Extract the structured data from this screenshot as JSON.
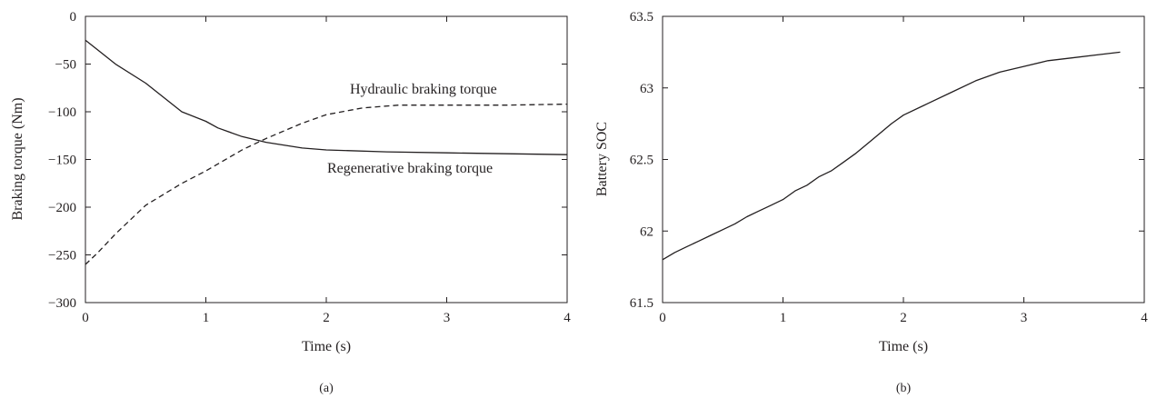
{
  "chart_data": [
    {
      "type": "line",
      "panel_label": "(a)",
      "xlabel": "Time (s)",
      "ylabel": "Braking torque (Nm)",
      "xlim": [
        0,
        4
      ],
      "ylim": [
        -300,
        0
      ],
      "xticks": [
        0,
        1,
        2,
        3,
        4
      ],
      "yticks": [
        0,
        -50,
        -100,
        -150,
        -200,
        -250,
        -300
      ],
      "xtick_labels": [
        "0",
        "1",
        "2",
        "3",
        "4"
      ],
      "ytick_labels": [
        "0",
        "−50",
        "−100",
        "−150",
        "−200",
        "−250",
        "−300"
      ],
      "grid": false,
      "line_color": "#231f20",
      "series": [
        {
          "name": "Regenerative braking torque",
          "style": "solid",
          "x": [
            0,
            0.1,
            0.25,
            0.5,
            0.8,
            1.0,
            1.1,
            1.3,
            1.5,
            1.8,
            2.0,
            2.5,
            3.0,
            3.5,
            4.0
          ],
          "y": [
            -25,
            -35,
            -50,
            -70,
            -100,
            -110,
            -117,
            -126,
            -132,
            -138,
            -140,
            -142,
            -143,
            -144,
            -145
          ]
        },
        {
          "name": "Hydraulic braking torque",
          "style": "dashed",
          "x": [
            0,
            0.1,
            0.25,
            0.5,
            0.8,
            1.0,
            1.3,
            1.5,
            1.8,
            2.0,
            2.3,
            2.6,
            3.0,
            3.5,
            4.0
          ],
          "y": [
            -260,
            -248,
            -228,
            -198,
            -175,
            -162,
            -140,
            -128,
            -112,
            -103,
            -96,
            -93,
            -93,
            -93,
            -92
          ]
        }
      ],
      "annotations": [
        {
          "text": "Hydraulic braking torque",
          "series": "Hydraulic braking torque"
        },
        {
          "text": "Regenerative braking torque",
          "series": "Regenerative braking torque"
        }
      ]
    },
    {
      "type": "line",
      "panel_label": "(b)",
      "xlabel": "Time (s)",
      "ylabel": "Battery SOC",
      "xlim": [
        0,
        4
      ],
      "ylim": [
        61.5,
        63.5
      ],
      "xticks": [
        0,
        1,
        2,
        3,
        4
      ],
      "yticks": [
        61.5,
        62,
        62.5,
        63,
        63.5
      ],
      "xtick_labels": [
        "0",
        "1",
        "2",
        "3",
        "4"
      ],
      "ytick_labels": [
        "61.5",
        "62",
        "62.5",
        "63",
        "63.5"
      ],
      "grid": false,
      "line_color": "#231f20",
      "series": [
        {
          "style": "solid",
          "x": [
            0,
            0.1,
            0.2,
            0.3,
            0.4,
            0.5,
            0.6,
            0.7,
            0.8,
            0.9,
            1.0,
            1.1,
            1.2,
            1.3,
            1.4,
            1.5,
            1.6,
            1.7,
            1.8,
            1.9,
            2.0,
            2.2,
            2.4,
            2.6,
            2.8,
            3.0,
            3.2,
            3.4,
            3.6,
            3.8
          ],
          "y": [
            61.8,
            61.85,
            61.89,
            61.93,
            61.97,
            62.01,
            62.05,
            62.1,
            62.14,
            62.18,
            62.22,
            62.28,
            62.32,
            62.38,
            62.42,
            62.48,
            62.54,
            62.61,
            62.68,
            62.75,
            62.81,
            62.89,
            62.97,
            63.05,
            63.11,
            63.15,
            63.19,
            63.21,
            63.23,
            63.25
          ]
        }
      ]
    }
  ]
}
